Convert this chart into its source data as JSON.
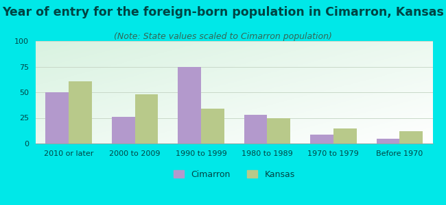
{
  "title": "Year of entry for the foreign-born population in Cimarron, Kansas",
  "subtitle": "(Note: State values scaled to Cimarron population)",
  "categories": [
    "2010 or later",
    "2000 to 2009",
    "1990 to 1999",
    "1980 to 1989",
    "1970 to 1979",
    "Before 1970"
  ],
  "cimarron_values": [
    50,
    26,
    75,
    28,
    9,
    5
  ],
  "kansas_values": [
    61,
    48,
    34,
    25,
    15,
    12
  ],
  "cimarron_color": "#b399cc",
  "kansas_color": "#b8c98a",
  "ylim": [
    0,
    100
  ],
  "yticks": [
    0,
    25,
    50,
    75,
    100
  ],
  "background_outer": "#00e8e8",
  "grid_color": "#c8d8c8",
  "bar_width": 0.35,
  "title_fontsize": 12.5,
  "subtitle_fontsize": 9,
  "tick_fontsize": 8,
  "legend_fontsize": 9,
  "title_color": "#004444",
  "subtitle_color": "#336655",
  "tick_color": "#004444"
}
